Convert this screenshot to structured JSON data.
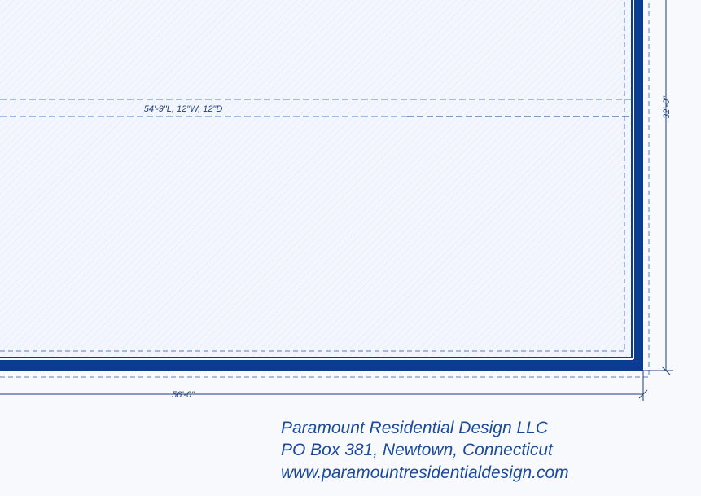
{
  "plan": {
    "beam_label": "54'-9\"L, 12\"W, 12\"D",
    "width_dimension": "56'-0\"",
    "depth_dimension": "32'-0\""
  },
  "title_block": {
    "company": "Paramount Residential Design LLC",
    "address": "PO Box 381, Newtown, Connecticut",
    "website": "www.paramountresidentialdesign.com"
  }
}
